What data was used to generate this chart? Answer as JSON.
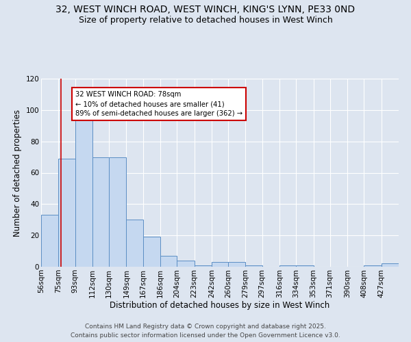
{
  "title_line1": "32, WEST WINCH ROAD, WEST WINCH, KING'S LYNN, PE33 0ND",
  "title_line2": "Size of property relative to detached houses in West Winch",
  "xlabel": "Distribution of detached houses by size in West Winch",
  "ylabel": "Number of detached properties",
  "bin_labels": [
    "56sqm",
    "75sqm",
    "93sqm",
    "112sqm",
    "130sqm",
    "149sqm",
    "167sqm",
    "186sqm",
    "204sqm",
    "223sqm",
    "242sqm",
    "260sqm",
    "279sqm",
    "297sqm",
    "316sqm",
    "334sqm",
    "353sqm",
    "371sqm",
    "390sqm",
    "408sqm",
    "427sqm"
  ],
  "bar_heights": [
    33,
    69,
    100,
    70,
    70,
    30,
    19,
    7,
    4,
    1,
    3,
    3,
    1,
    0,
    1,
    1,
    0,
    0,
    0,
    1,
    2
  ],
  "bin_edges": [
    56,
    75,
    93,
    112,
    130,
    149,
    167,
    186,
    204,
    223,
    242,
    260,
    279,
    297,
    316,
    334,
    353,
    371,
    390,
    408,
    427,
    446
  ],
  "bar_color": "#c5d8f0",
  "bar_edge_color": "#5b8ec4",
  "red_line_x": 78,
  "annotation_text": "32 WEST WINCH ROAD: 78sqm\n← 10% of detached houses are smaller (41)\n89% of semi-detached houses are larger (362) →",
  "annotation_box_color": "white",
  "annotation_box_edge_color": "#cc0000",
  "red_line_color": "#cc0000",
  "ylim": [
    0,
    120
  ],
  "yticks": [
    0,
    20,
    40,
    60,
    80,
    100,
    120
  ],
  "background_color": "#dde5f0",
  "grid_color": "white",
  "footer_line1": "Contains HM Land Registry data © Crown copyright and database right 2025.",
  "footer_line2": "Contains public sector information licensed under the Open Government Licence v3.0.",
  "title_fontsize": 10,
  "subtitle_fontsize": 9,
  "axis_label_fontsize": 8.5,
  "tick_fontsize": 7.5,
  "footer_fontsize": 6.5
}
